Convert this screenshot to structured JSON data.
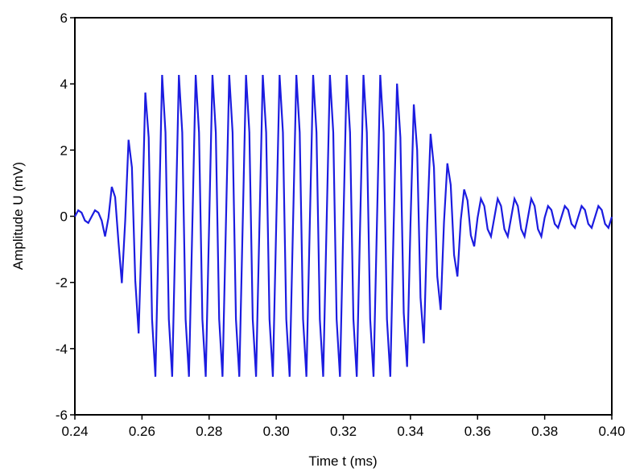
{
  "chart_data": {
    "type": "line",
    "xlabel": "Time t (ms)",
    "ylabel": "Amplitude U (mV)",
    "color": "#1c1ce0",
    "xlim": [
      0.24,
      0.4
    ],
    "ylim": [
      -6,
      6
    ],
    "xticks": [
      0.24,
      0.26,
      0.28,
      {
        "value": 0.3,
        "label": "0.30"
      },
      0.32,
      0.34,
      0.36,
      0.38,
      {
        "value": 0.4,
        "label": "0.40"
      }
    ],
    "yticks": [
      -6,
      -4,
      -2,
      0,
      2,
      4,
      6
    ],
    "x": [
      0.24,
      0.241,
      0.242,
      0.243,
      0.244,
      0.245,
      0.246,
      0.247,
      0.248,
      0.249,
      0.25,
      0.251,
      0.252,
      0.253,
      0.254,
      0.255,
      0.256,
      0.257,
      0.258,
      0.259,
      0.26,
      0.261,
      0.262,
      0.263,
      0.264,
      0.265,
      0.266,
      0.267,
      0.268,
      0.269,
      0.27,
      0.271,
      0.272,
      0.273,
      0.274,
      0.275,
      0.276,
      0.277,
      0.278,
      0.279,
      0.28,
      0.281,
      0.282,
      0.283,
      0.284,
      0.285,
      0.286,
      0.287,
      0.288,
      0.289,
      0.29,
      0.291,
      0.292,
      0.293,
      0.294,
      0.295,
      0.296,
      0.297,
      0.298,
      0.299,
      0.3,
      0.301,
      0.302,
      0.303,
      0.304,
      0.305,
      0.306,
      0.307,
      0.308,
      0.309,
      0.31,
      0.311,
      0.312,
      0.313,
      0.314,
      0.315,
      0.316,
      0.317,
      0.318,
      0.319,
      0.32,
      0.321,
      0.322,
      0.323,
      0.324,
      0.325,
      0.326,
      0.327,
      0.328,
      0.329,
      0.33,
      0.331,
      0.332,
      0.333,
      0.334,
      0.335,
      0.336,
      0.337,
      0.338,
      0.339,
      0.34,
      0.341,
      0.342,
      0.343,
      0.344,
      0.345,
      0.346,
      0.347,
      0.348,
      0.349,
      0.35,
      0.351,
      0.352,
      0.353,
      0.354,
      0.355,
      0.356,
      0.357,
      0.358,
      0.359,
      0.36,
      0.361,
      0.362,
      0.363,
      0.364,
      0.365,
      0.366,
      0.367,
      0.368,
      0.369,
      0.37,
      0.371,
      0.372,
      0.373,
      0.374,
      0.375,
      0.376,
      0.377,
      0.378,
      0.379,
      0.38,
      0.381,
      0.382,
      0.383,
      0.384,
      0.385,
      0.386,
      0.387,
      0.388,
      0.389,
      0.39,
      0.391,
      0.392,
      0.393,
      0.394,
      0.395,
      0.396,
      0.397,
      0.398,
      0.399,
      0.4
    ],
    "values": [
      -0.01,
      0.18,
      0.11,
      -0.13,
      -0.2,
      -0.01,
      0.18,
      0.11,
      -0.13,
      -0.61,
      -0.05,
      0.89,
      0.58,
      -0.78,
      -2.02,
      -0.14,
      2.31,
      1.48,
      -1.94,
      -3.54,
      -0.23,
      3.74,
      2.38,
      -3.11,
      -4.85,
      -0.29,
      4.27,
      2.53,
      -3.11,
      -4.85,
      -0.29,
      4.27,
      2.53,
      -3.11,
      -4.85,
      -0.29,
      4.27,
      2.53,
      -3.11,
      -4.85,
      -0.29,
      4.27,
      2.53,
      -3.11,
      -4.85,
      -0.29,
      4.27,
      2.53,
      -3.11,
      -4.85,
      -0.29,
      4.27,
      2.53,
      -3.11,
      -4.85,
      -0.29,
      4.27,
      2.53,
      -3.11,
      -4.85,
      -0.29,
      4.27,
      2.53,
      -3.11,
      -4.85,
      -0.29,
      4.27,
      2.53,
      -3.11,
      -4.85,
      -0.29,
      4.27,
      2.53,
      -3.11,
      -4.85,
      -0.29,
      4.27,
      2.53,
      -3.11,
      -4.85,
      -0.29,
      4.27,
      2.53,
      -3.11,
      -4.85,
      -0.29,
      4.27,
      2.53,
      -3.11,
      -4.85,
      -0.29,
      4.27,
      2.53,
      -3.11,
      -4.85,
      -0.29,
      4.01,
      2.38,
      -2.92,
      -4.55,
      -0.27,
      3.38,
      2.0,
      -2.46,
      -3.84,
      -0.23,
      2.49,
      1.48,
      -1.82,
      -2.83,
      -0.17,
      1.6,
      0.95,
      -1.17,
      -1.82,
      -0.11,
      0.81,
      0.48,
      -0.58,
      -0.91,
      -0.05,
      0.53,
      0.31,
      -0.39,
      -0.61,
      -0.04,
      0.53,
      0.31,
      -0.39,
      -0.61,
      -0.04,
      0.53,
      0.31,
      -0.39,
      -0.61,
      -0.04,
      0.53,
      0.31,
      -0.39,
      -0.61,
      -0.04,
      0.31,
      0.19,
      -0.23,
      -0.35,
      -0.02,
      0.31,
      0.19,
      -0.23,
      -0.35,
      -0.02,
      0.31,
      0.19,
      -0.23,
      -0.35,
      -0.02,
      0.31,
      0.19,
      -0.23,
      -0.35,
      -0.02
    ]
  }
}
